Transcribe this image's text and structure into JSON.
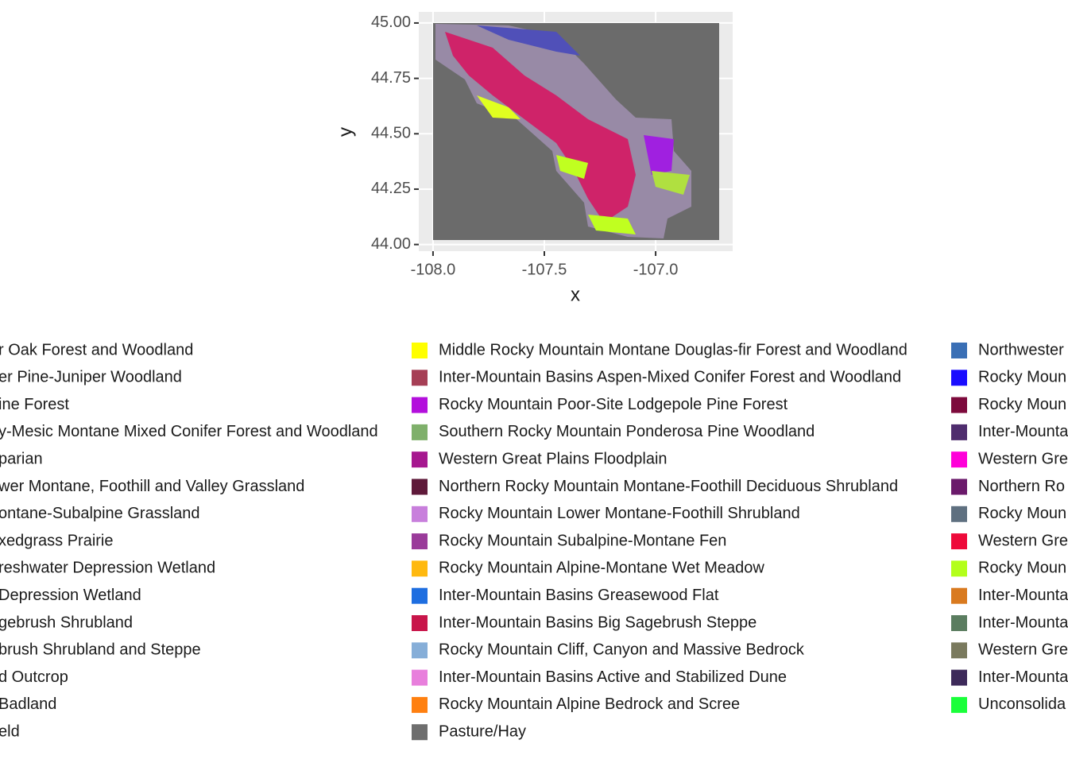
{
  "chart_data": {
    "type": "raster",
    "x_label": "x",
    "y_label": "y",
    "xlim": [
      -108.064,
      -106.654
    ],
    "ylim": [
      43.97,
      45.05
    ],
    "xticks": [
      {
        "value": -108,
        "label": "-108.0"
      },
      {
        "value": -107.5,
        "label": "-107.5"
      },
      {
        "value": -107,
        "label": "-107.0"
      }
    ],
    "yticks": [
      {
        "value": 44,
        "label": "44.00"
      },
      {
        "value": 44.25,
        "label": "44.25"
      },
      {
        "value": 44.5,
        "label": "44.50"
      },
      {
        "value": 44.75,
        "label": "44.75"
      },
      {
        "value": 45,
        "label": "45.00"
      }
    ],
    "grid": true,
    "legend": [
      [
        {
          "name": "r Oak Forest and Woodland"
        },
        {
          "name": "er Pine-Juniper Woodland"
        },
        {
          "name": "ine Forest"
        },
        {
          "name": "y-Mesic Montane Mixed Conifer Forest and Woodland"
        },
        {
          "name": "parian"
        },
        {
          "name": "wer Montane, Foothill and Valley Grassland"
        },
        {
          "name": "ontane-Subalpine Grassland"
        },
        {
          "name": "xedgrass Prairie"
        },
        {
          "name": "reshwater Depression Wetland"
        },
        {
          "name": "Depression Wetland"
        },
        {
          "name": "gebrush Shrubland"
        },
        {
          "name": "brush Shrubland and Steppe"
        },
        {
          "name": "d Outcrop"
        },
        {
          "name": "Badland"
        },
        {
          "name": "eld"
        }
      ],
      [
        {
          "name": "Middle Rocky Mountain Montane Douglas-fir Forest and Woodland",
          "color": "#ffff00"
        },
        {
          "name": "Inter-Mountain Basins Aspen-Mixed Conifer Forest and Woodland",
          "color": "#a63f55"
        },
        {
          "name": "Rocky Mountain Poor-Site Lodgepole Pine Forest",
          "color": "#b30fdc"
        },
        {
          "name": "Southern Rocky Mountain Ponderosa Pine Woodland",
          "color": "#7fb06b"
        },
        {
          "name": "Western Great Plains Floodplain",
          "color": "#a6178f"
        },
        {
          "name": "Northern Rocky Mountain Montane-Foothill Deciduous Shrubland",
          "color": "#5f1a3a"
        },
        {
          "name": "Rocky Mountain Lower Montane-Foothill Shrubland",
          "color": "#c87fdc"
        },
        {
          "name": "Rocky Mountain Subalpine-Montane Fen",
          "color": "#9a3b9a"
        },
        {
          "name": "Rocky Mountain Alpine-Montane Wet Meadow",
          "color": "#ffb90f"
        },
        {
          "name": "Inter-Mountain Basins Greasewood Flat",
          "color": "#1e6ee0"
        },
        {
          "name": "Inter-Mountain Basins Big Sagebrush Steppe",
          "color": "#c8154a"
        },
        {
          "name": "Rocky Mountain Cliff, Canyon and Massive Bedrock",
          "color": "#86aed8"
        },
        {
          "name": "Inter-Mountain Basins Active and Stabilized Dune",
          "color": "#e87fdc"
        },
        {
          "name": "Rocky Mountain Alpine Bedrock and Scree",
          "color": "#ff8010"
        },
        {
          "name": "Pasture/Hay",
          "color": "#6e6e6e"
        }
      ],
      [
        {
          "name": "Northwester",
          "color": "#3a6fb5"
        },
        {
          "name": "Rocky Moun",
          "color": "#1a0dff"
        },
        {
          "name": "Rocky Moun",
          "color": "#7d0a3c"
        },
        {
          "name": "Inter-Mounta",
          "color": "#4f2d6e"
        },
        {
          "name": "Western Gre",
          "color": "#ff00d9"
        },
        {
          "name": "Northern Ro",
          "color": "#6b1a6b"
        },
        {
          "name": "Rocky Moun",
          "color": "#5f7080"
        },
        {
          "name": "Western Gre",
          "color": "#ee0a3a"
        },
        {
          "name": "Rocky Moun",
          "color": "#b3ff1a"
        },
        {
          "name": "Inter-Mounta",
          "color": "#d97a1f"
        },
        {
          "name": "Inter-Mounta",
          "color": "#5b7d60"
        },
        {
          "name": "Western Gre",
          "color": "#7a7a5e"
        },
        {
          "name": "Inter-Mounta",
          "color": "#3d2a5a"
        },
        {
          "name": "Unconsolida",
          "color": "#1aff3a"
        }
      ]
    ]
  }
}
